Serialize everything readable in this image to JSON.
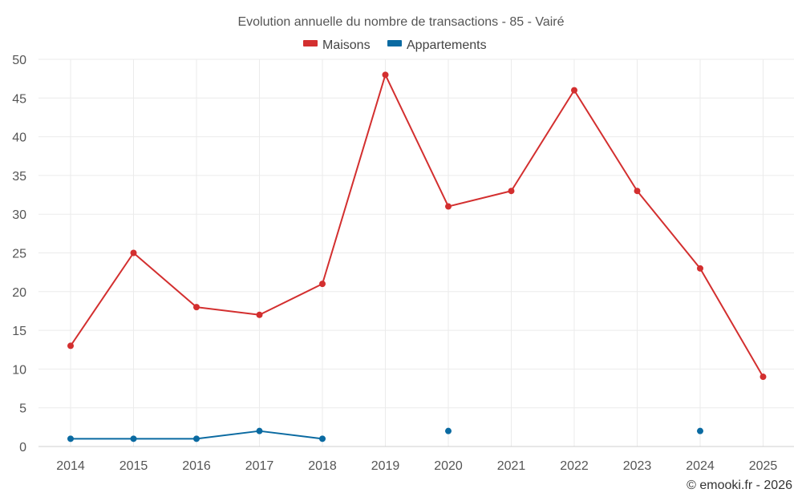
{
  "chart_data": {
    "type": "line",
    "title": "Evolution annuelle du nombre de transactions - 85 - Vairé",
    "categories": [
      "2014",
      "2015",
      "2016",
      "2017",
      "2018",
      "2019",
      "2020",
      "2021",
      "2022",
      "2023",
      "2024",
      "2025"
    ],
    "series": [
      {
        "name": "Maisons",
        "color": "#d32f2f",
        "values": [
          13,
          25,
          18,
          17,
          21,
          48,
          31,
          33,
          46,
          33,
          23,
          9
        ]
      },
      {
        "name": "Appartements",
        "color": "#0a6aa1",
        "values": [
          1,
          1,
          1,
          2,
          1,
          null,
          2,
          null,
          null,
          null,
          2,
          null
        ]
      }
    ],
    "ylim": [
      0,
      50
    ],
    "yticks": [
      0,
      5,
      10,
      15,
      20,
      25,
      30,
      35,
      40,
      45,
      50
    ],
    "legend_position": "top-center",
    "grid": true
  },
  "credit": "© emooki.fr - 2026"
}
